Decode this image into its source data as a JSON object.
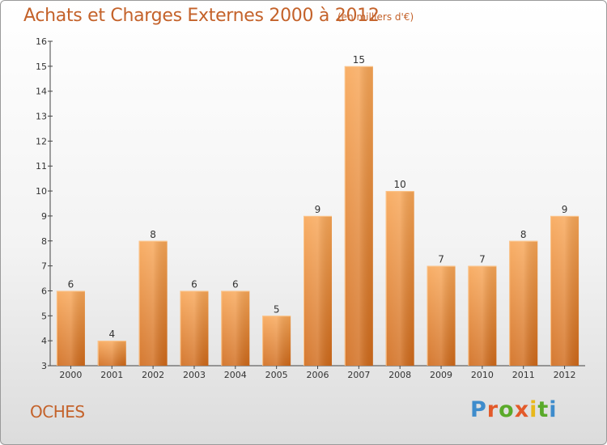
{
  "title": "Achats et Charges Externes 2000 à 2012",
  "subtitle": "(en milliers d'€)",
  "place": "OCHES",
  "logo": {
    "text": "Proxiti",
    "colors": [
      "#3e8ccc",
      "#e35a2a",
      "#5aaa2a",
      "#e8b81c"
    ]
  },
  "colors": {
    "title": "#c4622a",
    "bar_light": "#f6a456",
    "bar_dark": "#d26c1c"
  },
  "chart_data": {
    "type": "bar",
    "title": "Achats et Charges Externes 2000 à 2012",
    "subtitle": "(en milliers d'€)",
    "categories": [
      "2000",
      "2001",
      "2002",
      "2003",
      "2004",
      "2005",
      "2006",
      "2007",
      "2008",
      "2009",
      "2010",
      "2011",
      "2012"
    ],
    "values": [
      6,
      4,
      8,
      6,
      6,
      5,
      9,
      15,
      10,
      7,
      7,
      8,
      9
    ],
    "y_ticks": [
      3,
      4,
      5,
      6,
      7,
      8,
      9,
      10,
      11,
      12,
      13,
      14,
      15,
      16
    ],
    "ylim": [
      3,
      16
    ],
    "xlabel": "",
    "ylabel": "",
    "grid": false,
    "legend": "none"
  }
}
